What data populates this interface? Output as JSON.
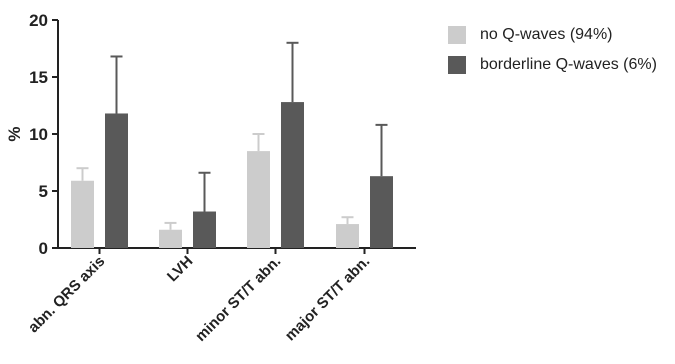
{
  "chart_data": {
    "type": "bar",
    "title": "",
    "xlabel": "",
    "ylabel": "%",
    "ylim": [
      0,
      20
    ],
    "yticks": [
      0,
      5,
      10,
      15,
      20
    ],
    "categories": [
      "abn. QRS axis",
      "LVH",
      "minor ST/T abn.",
      "major ST/T abn."
    ],
    "series": [
      {
        "name": "no Q-waves (94%)",
        "color": "#cccccc",
        "values": [
          5.9,
          1.6,
          8.5,
          2.1
        ],
        "error_upper": [
          7.0,
          2.2,
          10.0,
          2.7
        ]
      },
      {
        "name": "borderline Q-waves (6%)",
        "color": "#595959",
        "values": [
          11.8,
          3.2,
          12.8,
          6.3
        ],
        "error_upper": [
          16.8,
          6.6,
          18.0,
          10.8
        ]
      }
    ],
    "grid": false,
    "legend_position": "top-right"
  }
}
